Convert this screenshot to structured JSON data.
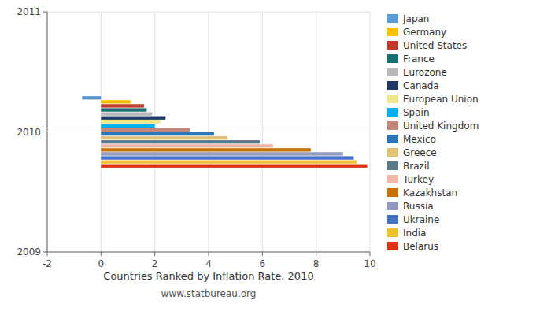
{
  "chart_data": {
    "type": "bar",
    "orientation": "horizontal",
    "title": "Countries Ranked by Inflation Rate, 2010",
    "subtitle": "www.statbureau.org",
    "x": [
      2010
    ],
    "series": [
      {
        "name": "Japan",
        "color": "#5B9BD5",
        "values": [
          -0.7
        ]
      },
      {
        "name": "Germany",
        "color": "#FFC000",
        "values": [
          1.1
        ]
      },
      {
        "name": "United States",
        "color": "#C0392B",
        "values": [
          1.6
        ]
      },
      {
        "name": "France",
        "color": "#1A6F72",
        "values": [
          1.7
        ]
      },
      {
        "name": "Eurozone",
        "color": "#B8B8B8",
        "values": [
          1.9
        ]
      },
      {
        "name": "Canada",
        "color": "#203864",
        "values": [
          2.4
        ]
      },
      {
        "name": "European Union",
        "color": "#F0E68C",
        "values": [
          2.2
        ]
      },
      {
        "name": "Spain",
        "color": "#00B0F0",
        "values": [
          2.0
        ]
      },
      {
        "name": "United Kingdom",
        "color": "#C0877A",
        "values": [
          3.3
        ]
      },
      {
        "name": "Mexico",
        "color": "#2E75B6",
        "values": [
          4.2
        ]
      },
      {
        "name": "Greece",
        "color": "#E2C275",
        "values": [
          4.7
        ]
      },
      {
        "name": "Brazil",
        "color": "#5A7A8A",
        "values": [
          5.9
        ]
      },
      {
        "name": "Turkey",
        "color": "#F4B8A8",
        "values": [
          6.4
        ]
      },
      {
        "name": "Kazakhstan",
        "color": "#C87000",
        "values": [
          7.8
        ]
      },
      {
        "name": "Russia",
        "color": "#9098C0",
        "values": [
          9.0
        ]
      },
      {
        "name": "Ukraine",
        "color": "#4472C4",
        "values": [
          9.4
        ]
      },
      {
        "name": "India",
        "color": "#F0C030",
        "values": [
          9.5
        ]
      },
      {
        "name": "Belarus",
        "color": "#E03015",
        "values": [
          9.9
        ]
      }
    ],
    "xlim": [
      -2,
      10
    ],
    "xticks": [
      -2,
      0,
      2,
      4,
      6,
      8,
      10
    ],
    "ylim": [
      2009,
      2011
    ],
    "yticks": [
      2009,
      2010,
      2011
    ],
    "grid": true,
    "legend": "right"
  }
}
